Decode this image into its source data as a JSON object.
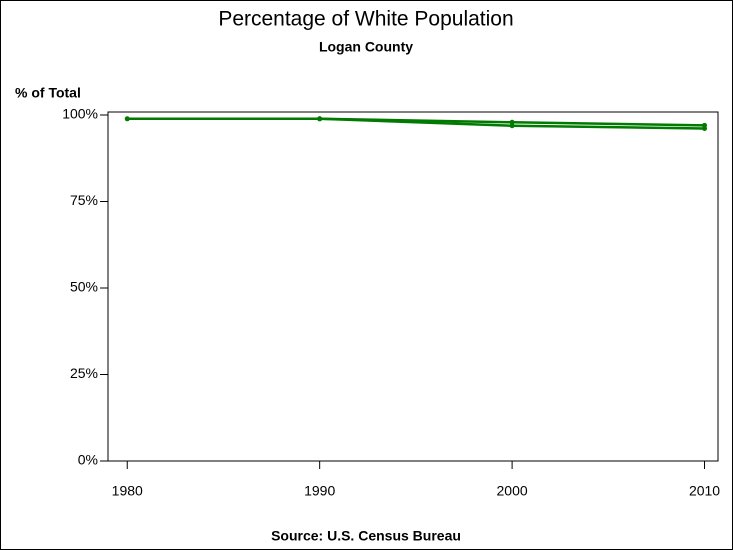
{
  "chart_data": {
    "type": "line",
    "title": "Percentage of White Population",
    "subtitle": "Logan County",
    "y_label": "% of Total",
    "source": "Source: U.S. Census Bureau",
    "x": [
      1980,
      1990,
      2000,
      2010
    ],
    "series": [
      {
        "color": "#007a00",
        "values": [
          98.9,
          98.9,
          97.9,
          97.0
        ]
      },
      {
        "color": "#007a00",
        "values": [
          null,
          98.9,
          96.9,
          96.1
        ]
      }
    ],
    "xlim": [
      1979,
      2010.7
    ],
    "xticks": [
      1980,
      1990,
      2000,
      2010
    ],
    "ylim": [
      0,
      100
    ],
    "yticks": [
      {
        "value": 0,
        "label": "0%"
      },
      {
        "value": 25,
        "label": "25%"
      },
      {
        "value": 50,
        "label": "50%"
      },
      {
        "value": 75,
        "label": "75%"
      },
      {
        "value": 100,
        "label": "100%"
      }
    ]
  }
}
